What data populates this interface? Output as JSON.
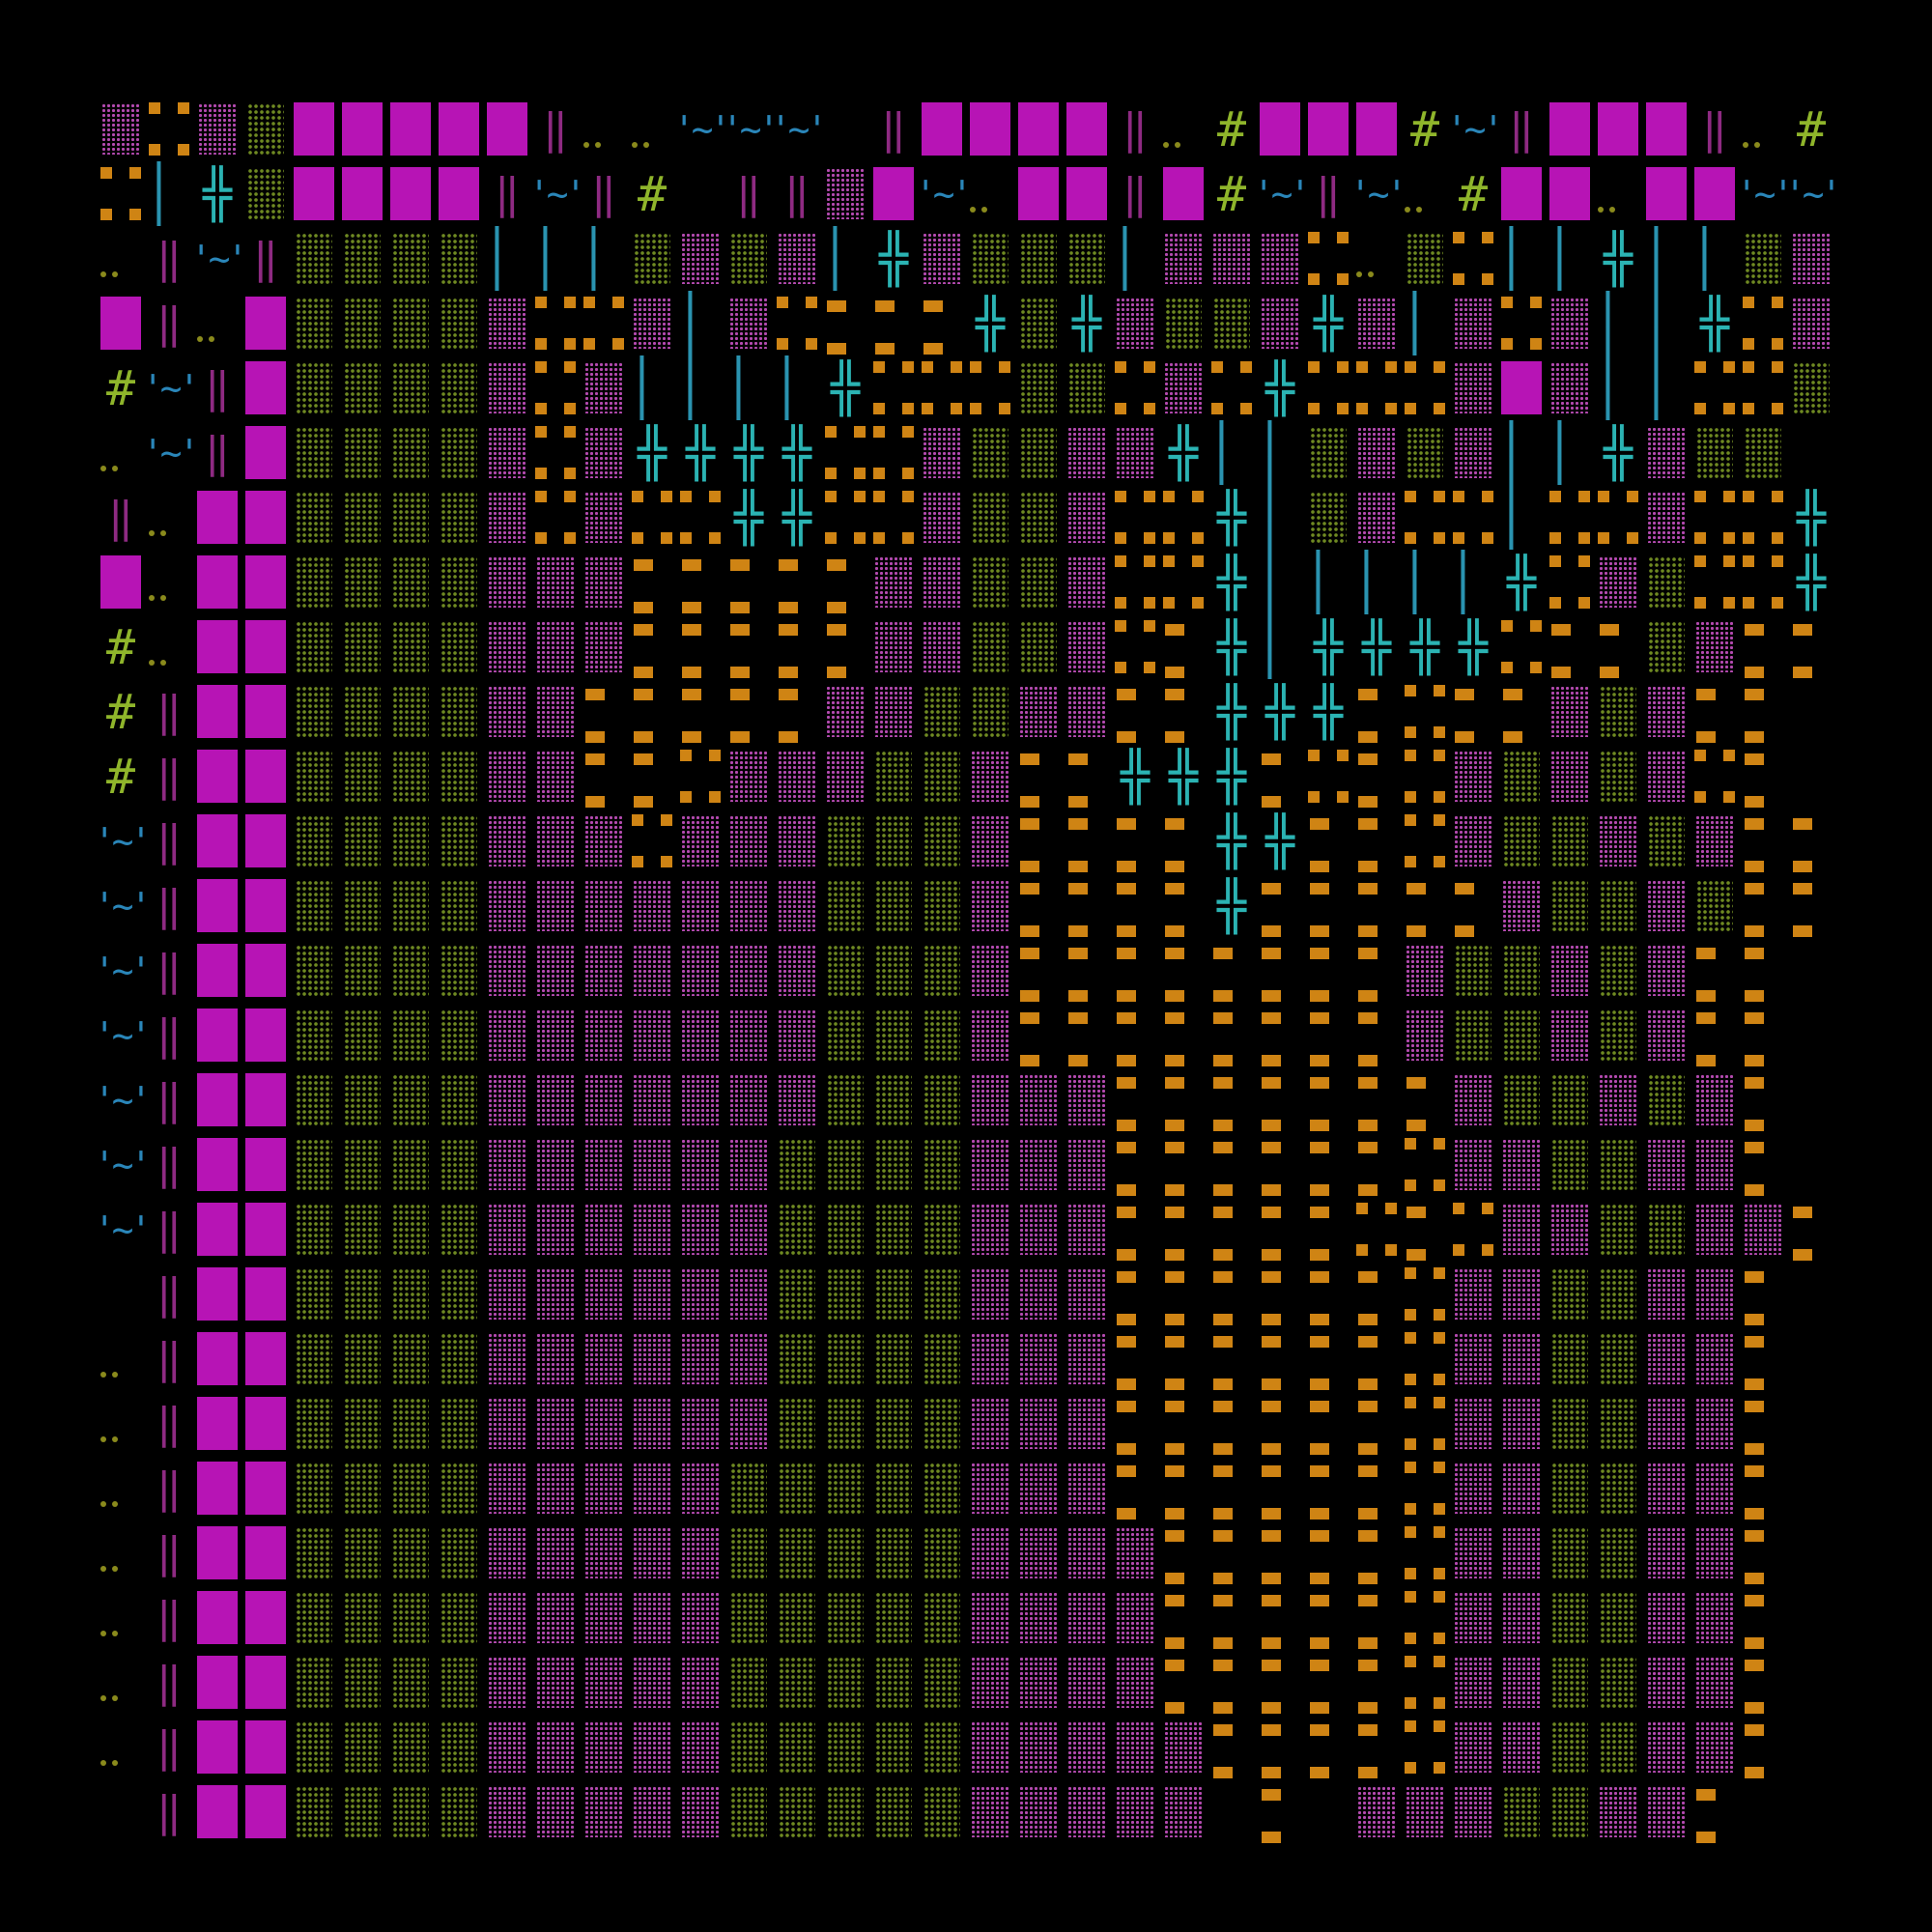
{
  "legend": {
    "W": "magenta-wall-tile",
    "p": "pink-dotted-floor",
    "g": "green-dotted-grass",
    "o": "orange-dash-floor",
    "d": "orange-door-corners",
    ".": "olive-dots",
    "B": "purple-double-bar",
    "+": "cyan-cross-glyph",
    "#": "green-hash-glyph",
    "~": "blue-water-glyph",
    "|": "cyan-pipe-glyph",
    " ": "empty"
  },
  "glyphs": {
    "B": "‖",
    "+": "╬",
    "#": "#",
    "~": "'~'",
    "|": "| |"
  },
  "colors": {
    "background": "#000000",
    "wall": "#b714b5",
    "pink_floor": "#b44ab0",
    "grass": "#6f8a22",
    "orange": "#cf8414",
    "cyan": "#2bb3b3",
    "water": "#2a86b9",
    "hash": "#8fb52b",
    "bars": "#8e2a82"
  },
  "map_rows": [
    "pdpgWWWWWB..~~~ BWWWWB.#WWW#~BWWWB.#W",
    "d|+gWWWWB~B# BBpW~.WWBW#~B~.#WW.WW~~",
    ".B~Bgggg|||gpgp|+pggg|pppd.gd||+||gpd",
    "WB.Wggggpddp|pdooo+g+pggp+p|pdp||+dpg",
    "#~BWggggpdp||||+dddggdpd+dddpWp||ddg",
    ".~BWggggpdp++++ddpggpp+||gpgp||+pgg",
    "B.WWggggpdpdd++ddpggpdd+|gpdd|ddpdd+",
    "W.WWggggpppoooooppggpdd+|||||+dpgdd+",
    "#.WWggggpppoooooppggpdo+|++++doogpoo",
    "#BWWggggppoooooppggppoo+++odoopgpoo",
    "#BWWggggppoodpppggpoo+++ododpgpgpdo",
    "~BWWggggpppdpppgggpoooo++oodpggpgpoo",
    "~BWWggggpppppppgggpoooo+ooooopggpgoo",
    "~BWWggggpppppppgggpoooooooopggpgpoo",
    "~BWWggggpppppppgggpoooooooopggpgpoo",
    "~BWWggggpppppppgggpppooooooopggpgpo",
    "~BWWggggppppppggggpppoooooodppggppo",
    "~BWWggggppppppggggpppooooododppggppo",
    " BWWggggppppppggggpppoooooodppggppo",
    ".BWWggggppppppggggpppoooooodppggppo",
    ".BWWggggppppppggggpppoooooodppggppo",
    ".BWWggggpppppgggggpppoooooodppggppo",
    ".BWWggggpppppgggggppppooooodppggppo",
    ".BWWggggpppppgggggppppooooodppggppo",
    ".BWWggggpppppgggggppppooooodppggppo",
    ".BWWggggpppppgggggpppppoooodppggppo",
    " BWWggggpppppgggggppppp o pppggppo"
  ]
}
